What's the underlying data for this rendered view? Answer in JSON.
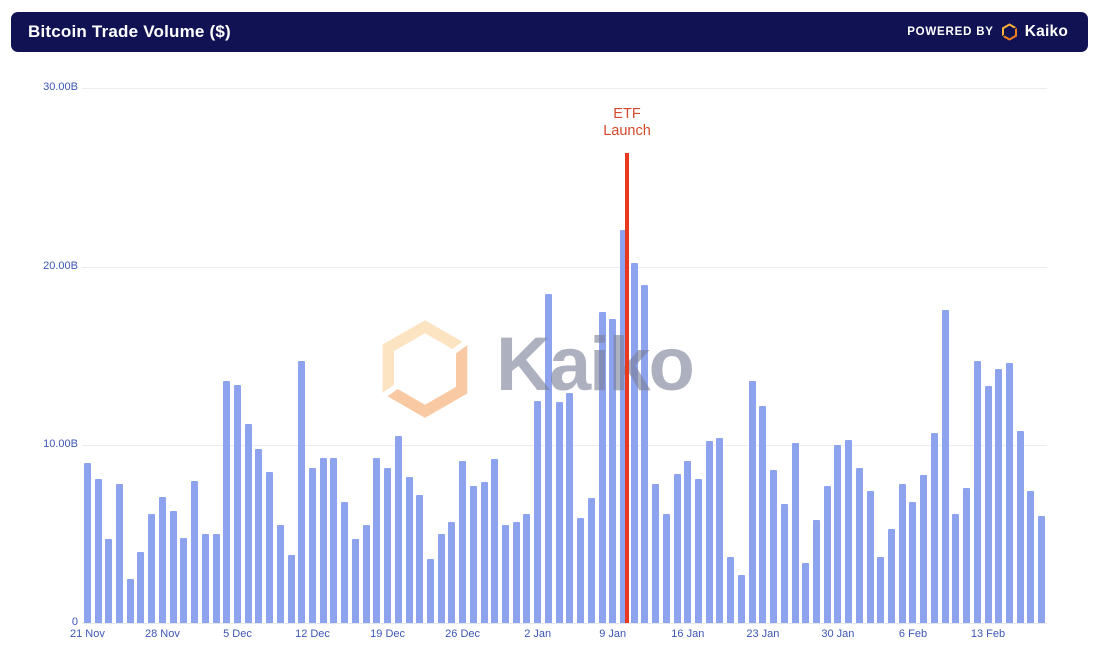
{
  "header": {
    "title": "Bitcoin Trade Volume ($)",
    "powered_by": "POWERED BY",
    "brand": "Kaiko"
  },
  "watermark": {
    "text": "Kaiko"
  },
  "annotation": {
    "line1": "ETF",
    "line2": "Launch"
  },
  "y_axis": {
    "ticks": [
      "30.00B",
      "20.00B",
      "10.00B",
      "0"
    ]
  },
  "colors": {
    "header_bg": "#101254",
    "bar": "#8da3ed",
    "axis_label": "#3c57b6",
    "gridline": "#ececf3",
    "annotation_line": "#e8391f",
    "annotation_text": "#d5492c",
    "watermark_text": "#9ca1bb",
    "logo_orange_light": "#fbd4a0",
    "logo_orange_dark": "#f5a96b"
  },
  "chart_data": {
    "type": "bar",
    "title": "Bitcoin Trade Volume ($)",
    "unit": "USD billions",
    "ylim": [
      0,
      31.6
    ],
    "y_ticks": [
      0,
      10,
      20,
      30
    ],
    "grid": "horizontal",
    "legend": "none",
    "bar_color": "#8da3ed",
    "categories": [
      "21 Nov",
      "22 Nov",
      "23 Nov",
      "24 Nov",
      "25 Nov",
      "26 Nov",
      "27 Nov",
      "28 Nov",
      "29 Nov",
      "30 Nov",
      "1 Dec",
      "2 Dec",
      "3 Dec",
      "4 Dec",
      "5 Dec",
      "6 Dec",
      "7 Dec",
      "8 Dec",
      "9 Dec",
      "10 Dec",
      "11 Dec",
      "12 Dec",
      "13 Dec",
      "14 Dec",
      "15 Dec",
      "16 Dec",
      "17 Dec",
      "18 Dec",
      "19 Dec",
      "20 Dec",
      "21 Dec",
      "22 Dec",
      "23 Dec",
      "24 Dec",
      "25 Dec",
      "26 Dec",
      "27 Dec",
      "28 Dec",
      "29 Dec",
      "30 Dec",
      "31 Dec",
      "1 Jan",
      "2 Jan",
      "3 Jan",
      "4 Jan",
      "5 Jan",
      "6 Jan",
      "7 Jan",
      "8 Jan",
      "9 Jan",
      "10 Jan",
      "11 Jan",
      "12 Jan",
      "13 Jan",
      "14 Jan",
      "15 Jan",
      "16 Jan",
      "17 Jan",
      "18 Jan",
      "19 Jan",
      "20 Jan",
      "21 Jan",
      "22 Jan",
      "23 Jan",
      "24 Jan",
      "25 Jan",
      "26 Jan",
      "27 Jan",
      "28 Jan",
      "29 Jan",
      "30 Jan",
      "31 Jan",
      "1 Feb",
      "2 Feb",
      "3 Feb",
      "4 Feb",
      "5 Feb",
      "6 Feb",
      "7 Feb",
      "8 Feb",
      "9 Feb",
      "10 Feb",
      "11 Feb",
      "12 Feb",
      "13 Feb",
      "14 Feb",
      "15 Feb",
      "16 Feb",
      "17 Feb",
      "18 Feb"
    ],
    "values": [
      9.0,
      8.1,
      4.7,
      7.8,
      2.5,
      4.0,
      6.1,
      7.1,
      6.3,
      4.8,
      8.0,
      5.0,
      5.0,
      13.6,
      13.4,
      11.2,
      9.8,
      8.5,
      5.5,
      3.8,
      14.7,
      8.7,
      9.3,
      9.3,
      6.8,
      4.7,
      5.5,
      9.3,
      8.7,
      10.5,
      8.2,
      7.2,
      3.6,
      5.0,
      5.7,
      9.1,
      7.7,
      7.9,
      9.2,
      5.5,
      5.7,
      6.1,
      12.5,
      18.5,
      12.4,
      12.9,
      5.9,
      7.0,
      17.5,
      17.1,
      22.1,
      20.2,
      19.0,
      7.8,
      6.1,
      8.4,
      9.1,
      8.1,
      10.2,
      10.4,
      3.7,
      2.7,
      13.6,
      12.2,
      8.6,
      6.7,
      10.1,
      3.4,
      5.8,
      7.7,
      10.0,
      10.3,
      8.7,
      7.4,
      3.7,
      5.3,
      7.8,
      6.8,
      8.3,
      10.7,
      17.6,
      6.1,
      7.6,
      14.7,
      13.3,
      14.3,
      14.6,
      10.8,
      7.4,
      6.0
    ],
    "x_tick_labels": [
      "21 Nov",
      "28 Nov",
      "5 Dec",
      "12 Dec",
      "19 Dec",
      "26 Dec",
      "2 Jan",
      "9 Jan",
      "16 Jan",
      "23 Jan",
      "30 Jan",
      "6 Feb",
      "13 Feb"
    ],
    "x_tick_indices": [
      0,
      7,
      14,
      21,
      28,
      35,
      42,
      49,
      56,
      63,
      70,
      77,
      84
    ],
    "annotation": {
      "label": "ETF Launch",
      "after_category": "10 Jan",
      "style": "vertical red line",
      "color": "#e8391f"
    }
  }
}
